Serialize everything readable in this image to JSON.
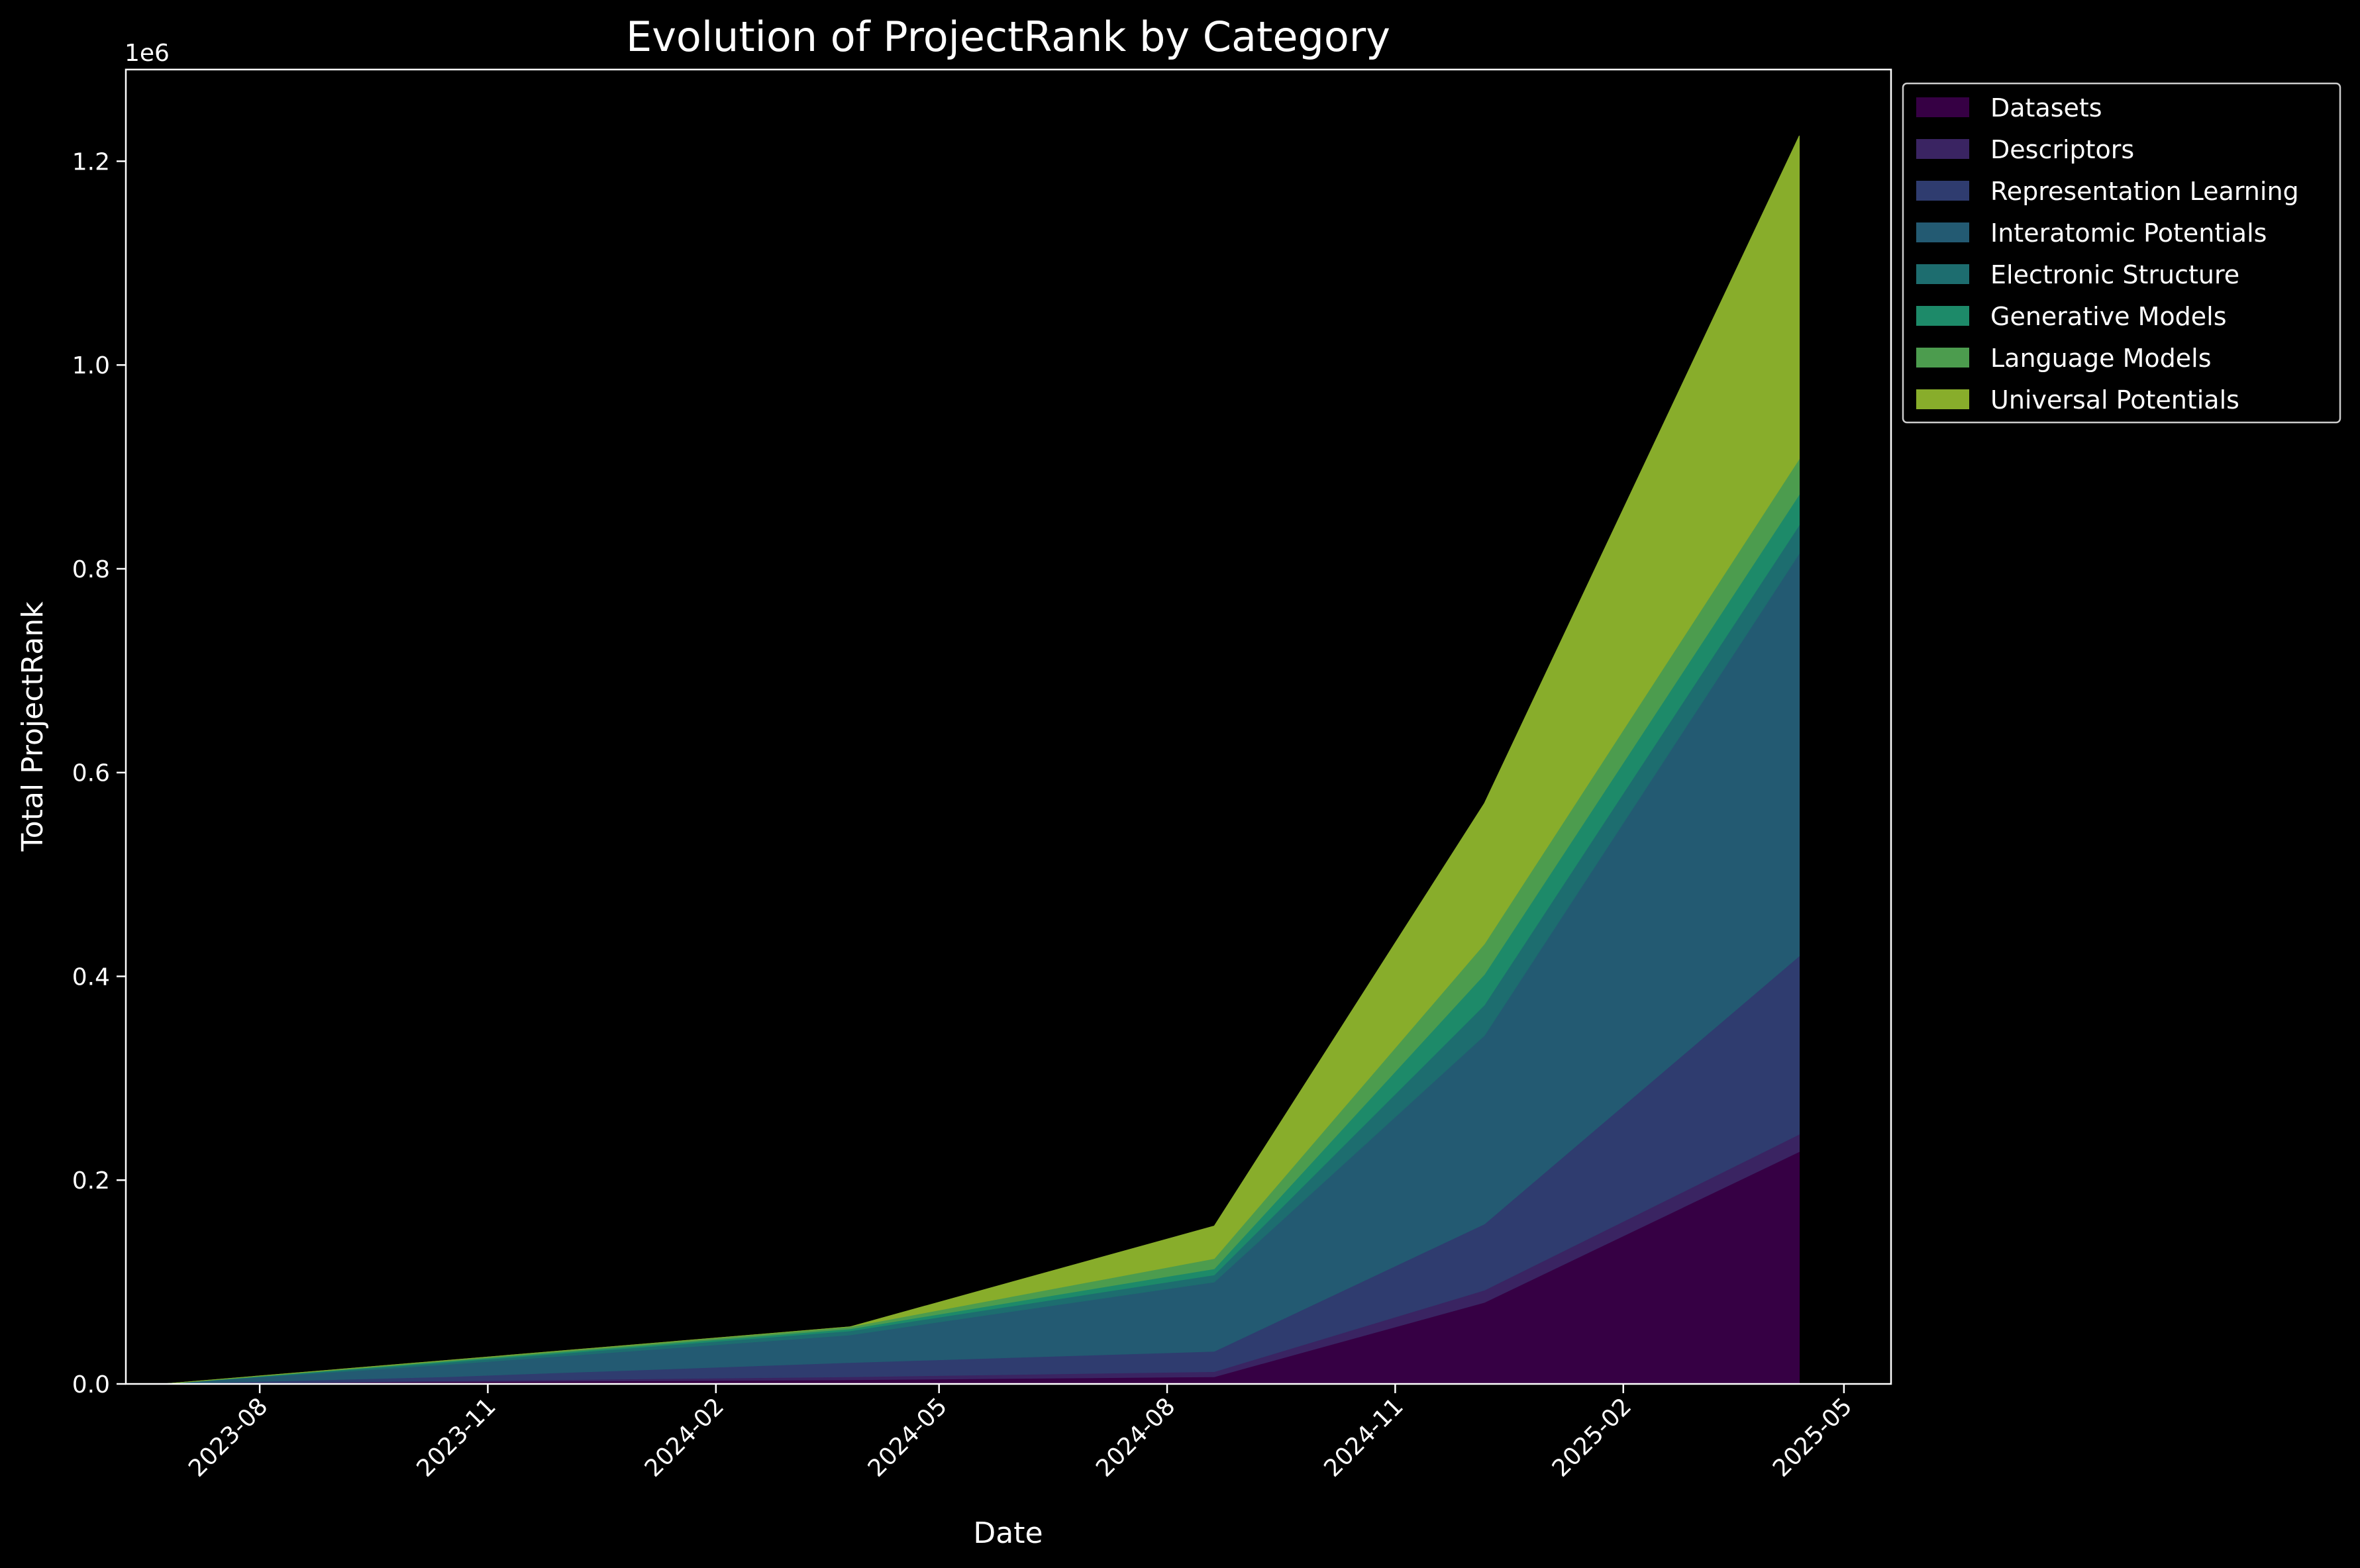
{
  "chart_data": {
    "type": "area",
    "stacked": true,
    "title": "Evolution of ProjectRank by Category",
    "xlabel": "Date",
    "ylabel": "Total ProjectRank",
    "y_offset_label": "1e6",
    "ylim": [
      0,
      1.29
    ],
    "xlim": [
      "2023-06-08",
      "2025-05-20"
    ],
    "grid": false,
    "background": "#000000",
    "legend": {
      "placement": "outside-right-top"
    },
    "x_ticks": [
      "2023-08",
      "2023-11",
      "2024-02",
      "2024-05",
      "2024-08",
      "2024-11",
      "2025-02",
      "2025-05"
    ],
    "x_tick_dates": [
      "2023-08-01",
      "2023-11-01",
      "2024-02-01",
      "2024-05-01",
      "2024-08-01",
      "2024-11-01",
      "2025-02-01",
      "2025-05-01"
    ],
    "y_ticks": [
      "0.0",
      "0.2",
      "0.4",
      "0.6",
      "0.8",
      "1.0",
      "1.2"
    ],
    "y_tick_values": [
      0,
      0.2,
      0.4,
      0.6,
      0.8,
      1.0,
      1.2
    ],
    "x": [
      "2023-06-23",
      "2023-10-15",
      "2024-03-26",
      "2024-08-20",
      "2024-12-07",
      "2025-04-13"
    ],
    "series": [
      {
        "name": "Datasets",
        "color": "#360044",
        "values": [
          0,
          0.002,
          0.004,
          0.007,
          0.08,
          0.228
        ]
      },
      {
        "name": "Descriptors",
        "color": "#3a2462",
        "values": [
          0,
          0.001,
          0.003,
          0.005,
          0.012,
          0.017
        ]
      },
      {
        "name": "Representation Learning",
        "color": "#2f3c6f",
        "values": [
          0,
          0.004,
          0.014,
          0.02,
          0.065,
          0.175
        ]
      },
      {
        "name": "Interatomic Potentials",
        "color": "#235a72",
        "values": [
          0,
          0.012,
          0.027,
          0.068,
          0.185,
          0.395
        ]
      },
      {
        "name": "Electronic Structure",
        "color": "#1d6d6f",
        "values": [
          0,
          0.002,
          0.004,
          0.007,
          0.03,
          0.028
        ]
      },
      {
        "name": "Generative Models",
        "color": "#1d8a69",
        "values": [
          0,
          0.001,
          0.002,
          0.006,
          0.03,
          0.03
        ]
      },
      {
        "name": "Language Models",
        "color": "#4c9c4e",
        "values": [
          0,
          0.001,
          0.002,
          0.01,
          0.03,
          0.035
        ]
      },
      {
        "name": "Universal Potentials",
        "color": "#88ad2b",
        "values": [
          0,
          0,
          0,
          0.032,
          0.138,
          0.317
        ]
      }
    ]
  }
}
